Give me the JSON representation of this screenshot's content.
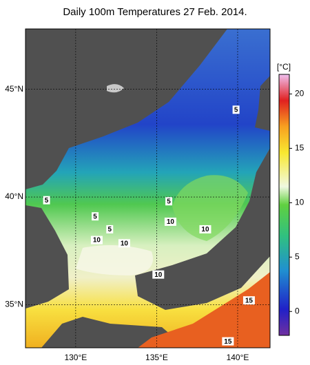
{
  "title": "Daily 100m Temperatures 27 Feb. 2014.",
  "map": {
    "lon_range": [
      126.9,
      142.0
    ],
    "lat_range": [
      33.0,
      47.8
    ],
    "lon_ticks": [
      {
        "value": 130,
        "label": "130°E"
      },
      {
        "value": 135,
        "label": "135°E"
      },
      {
        "value": 140,
        "label": "140°E"
      }
    ],
    "lat_ticks": [
      {
        "value": 35,
        "label": "35°N"
      },
      {
        "value": 40,
        "label": "40°N"
      },
      {
        "value": 45,
        "label": "45°N"
      }
    ],
    "grid": true
  },
  "colorbar": {
    "unit": "[°C]",
    "range": [
      -2.2,
      21.8
    ],
    "ticks": [
      0,
      5,
      10,
      15,
      20
    ]
  },
  "contour_labels": [
    {
      "text": "5",
      "lon": 139.9,
      "lat": 44.05
    },
    {
      "text": "5",
      "lon": 128.2,
      "lat": 39.85
    },
    {
      "text": "5",
      "lon": 131.2,
      "lat": 39.1
    },
    {
      "text": "5",
      "lon": 132.1,
      "lat": 38.5
    },
    {
      "text": "5",
      "lon": 135.75,
      "lat": 39.8
    },
    {
      "text": "10",
      "lon": 135.85,
      "lat": 38.85
    },
    {
      "text": "10",
      "lon": 138.0,
      "lat": 38.5
    },
    {
      "text": "10",
      "lon": 131.3,
      "lat": 38.0
    },
    {
      "text": "10",
      "lon": 133.0,
      "lat": 37.85
    },
    {
      "text": "10",
      "lon": 135.1,
      "lat": 36.4
    },
    {
      "text": "15",
      "lon": 140.7,
      "lat": 35.2
    },
    {
      "text": "15",
      "lon": 139.4,
      "lat": 33.3
    }
  ]
}
